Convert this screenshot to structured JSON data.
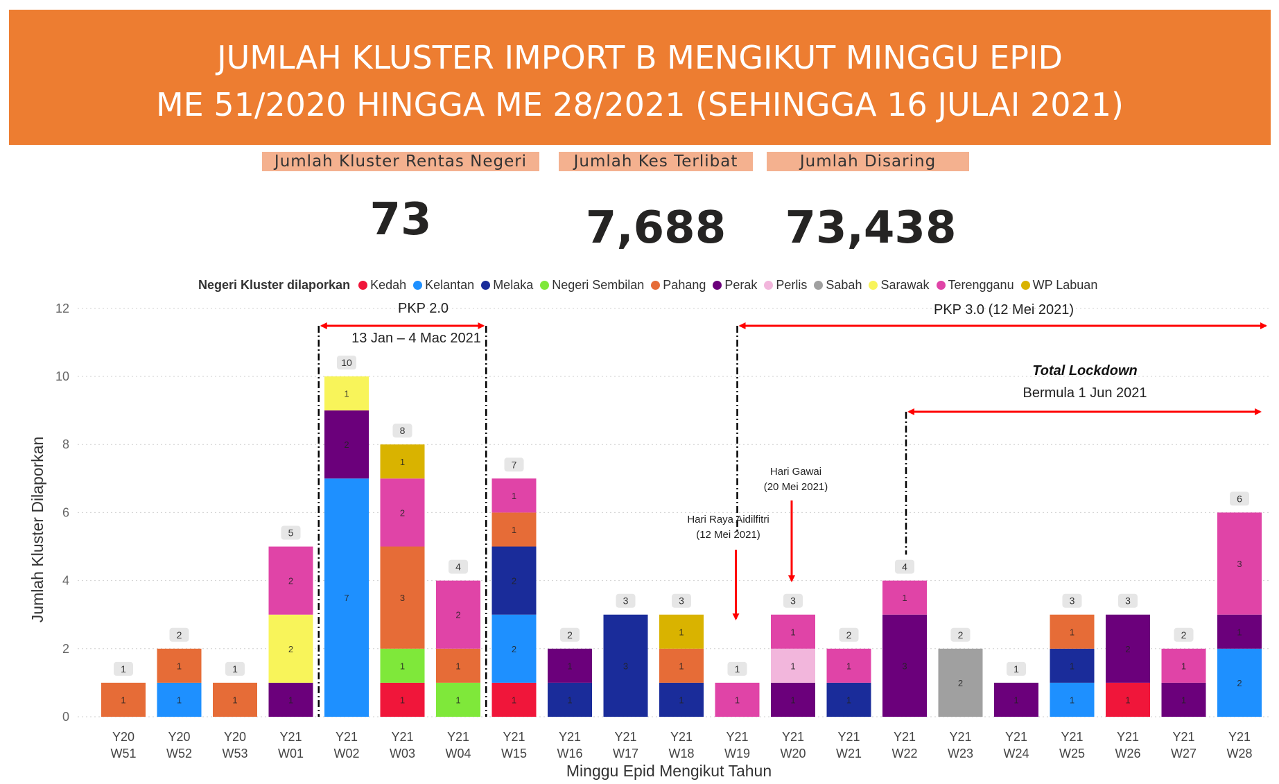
{
  "banner": {
    "line1": "JUMLAH KLUSTER IMPORT B MENGIKUT MINGGU EPID",
    "line2": "ME 51/2020 HINGGA ME 28/2021 (SEHINGGA 16 JULAI 2021)"
  },
  "kpis": [
    {
      "label": "Jumlah Kluster Rentas Negeri",
      "value": "73"
    },
    {
      "label": "Jumlah Kes Terlibat",
      "value": "7,688"
    },
    {
      "label": "Jumlah Disaring",
      "value": "73,438"
    }
  ],
  "legend": {
    "title": "Negeri Kluster dilaporkan",
    "items": [
      {
        "name": "Kedah",
        "color": "#F0163A"
      },
      {
        "name": "Kelantan",
        "color": "#1E90FF"
      },
      {
        "name": "Melaka",
        "color": "#1A2C9A"
      },
      {
        "name": "Negeri Sembilan",
        "color": "#7FE83A"
      },
      {
        "name": "Pahang",
        "color": "#E66C37"
      },
      {
        "name": "Perak",
        "color": "#6B007B"
      },
      {
        "name": "Perlis",
        "color": "#F2B6DC"
      },
      {
        "name": "Sabah",
        "color": "#A0A0A0"
      },
      {
        "name": "Sarawak",
        "color": "#F8F45A"
      },
      {
        "name": "Terengganu",
        "color": "#E044A7"
      },
      {
        "name": "WP Labuan",
        "color": "#D9B300"
      }
    ]
  },
  "annotations": {
    "pkp2_title": "PKP 2.0",
    "pkp2_dates": "13 Jan – 4 Mac 2021",
    "pkp3": "PKP 3.0 (12 Mei 2021)",
    "lockdown_title": "Total Lockdown",
    "lockdown_sub": "Bermula 1 Jun 2021",
    "hari_raya_1": "Hari Raya Aidilfitri",
    "hari_raya_2": "(12 Mei 2021)",
    "hari_gawai_1": "Hari Gawai",
    "hari_gawai_2": "(20 Mei 2021)"
  },
  "chart_data": {
    "type": "bar",
    "stacked": true,
    "xlabel": "Minggu Epid Mengikut Tahun",
    "ylabel": "Jumlah Kluster Dilaporkan",
    "ylim": [
      0,
      12
    ],
    "yticks": [
      0,
      2,
      4,
      6,
      8,
      10,
      12
    ],
    "grid": true,
    "categories": [
      [
        "Y20",
        "W51"
      ],
      [
        "Y20",
        "W52"
      ],
      [
        "Y20",
        "W53"
      ],
      [
        "Y21",
        "W01"
      ],
      [
        "Y21",
        "W02"
      ],
      [
        "Y21",
        "W03"
      ],
      [
        "Y21",
        "W04"
      ],
      [
        "Y21",
        "W15"
      ],
      [
        "Y21",
        "W16"
      ],
      [
        "Y21",
        "W17"
      ],
      [
        "Y21",
        "W18"
      ],
      [
        "Y21",
        "W19"
      ],
      [
        "Y21",
        "W20"
      ],
      [
        "Y21",
        "W21"
      ],
      [
        "Y21",
        "W22"
      ],
      [
        "Y21",
        "W23"
      ],
      [
        "Y21",
        "W24"
      ],
      [
        "Y21",
        "W25"
      ],
      [
        "Y21",
        "W26"
      ],
      [
        "Y21",
        "W27"
      ],
      [
        "Y21",
        "W28"
      ]
    ],
    "totals": [
      1,
      2,
      1,
      5,
      10,
      8,
      4,
      7,
      2,
      3,
      3,
      1,
      3,
      2,
      4,
      2,
      1,
      3,
      3,
      2,
      6
    ],
    "series": [
      {
        "name": "Kedah",
        "values": [
          0,
          0,
          0,
          0,
          0,
          1,
          0,
          1,
          0,
          0,
          0,
          0,
          0,
          0,
          0,
          0,
          0,
          0,
          1,
          0,
          0
        ]
      },
      {
        "name": "Kelantan",
        "values": [
          0,
          1,
          0,
          0,
          7,
          0,
          0,
          2,
          0,
          0,
          0,
          0,
          0,
          0,
          0,
          0,
          0,
          1,
          0,
          0,
          2
        ]
      },
      {
        "name": "Melaka",
        "values": [
          0,
          0,
          0,
          0,
          0,
          0,
          0,
          2,
          1,
          3,
          1,
          0,
          0,
          1,
          0,
          0,
          0,
          1,
          0,
          0,
          0
        ]
      },
      {
        "name": "Negeri Sembilan",
        "values": [
          0,
          0,
          0,
          0,
          0,
          1,
          1,
          0,
          0,
          0,
          0,
          0,
          0,
          0,
          0,
          0,
          0,
          0,
          0,
          0,
          0
        ]
      },
      {
        "name": "Pahang",
        "values": [
          1,
          1,
          1,
          0,
          0,
          3,
          1,
          1,
          0,
          0,
          1,
          0,
          0,
          0,
          0,
          0,
          0,
          1,
          0,
          0,
          0
        ]
      },
      {
        "name": "Perak",
        "values": [
          0,
          0,
          0,
          1,
          2,
          0,
          0,
          0,
          1,
          0,
          0,
          0,
          1,
          0,
          3,
          0,
          1,
          0,
          2,
          1,
          1
        ]
      },
      {
        "name": "Perlis",
        "values": [
          0,
          0,
          0,
          0,
          0,
          0,
          0,
          0,
          0,
          0,
          0,
          0,
          1,
          0,
          0,
          0,
          0,
          0,
          0,
          0,
          0
        ]
      },
      {
        "name": "Sabah",
        "values": [
          0,
          0,
          0,
          0,
          0,
          0,
          0,
          0,
          0,
          0,
          0,
          0,
          0,
          0,
          0,
          2,
          0,
          0,
          0,
          0,
          0
        ]
      },
      {
        "name": "Sarawak",
        "values": [
          0,
          0,
          0,
          2,
          1,
          0,
          0,
          0,
          0,
          0,
          0,
          0,
          0,
          0,
          0,
          0,
          0,
          0,
          0,
          0,
          0
        ]
      },
      {
        "name": "Terengganu",
        "values": [
          0,
          0,
          0,
          2,
          0,
          2,
          2,
          1,
          0,
          0,
          0,
          1,
          1,
          1,
          1,
          0,
          0,
          0,
          0,
          1,
          3
        ]
      },
      {
        "name": "WP Labuan",
        "values": [
          0,
          0,
          0,
          0,
          0,
          1,
          0,
          0,
          0,
          0,
          1,
          0,
          0,
          0,
          0,
          0,
          0,
          0,
          0,
          0,
          0
        ]
      }
    ]
  }
}
